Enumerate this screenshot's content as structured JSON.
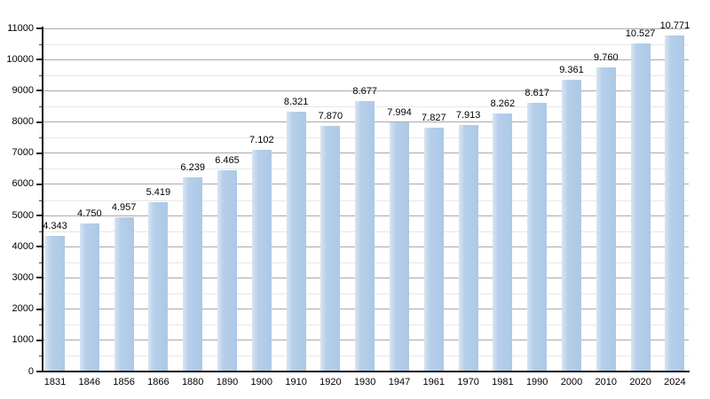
{
  "chart_data": {
    "type": "bar",
    "title": "",
    "xlabel": "",
    "ylabel": "",
    "categories": [
      "1831",
      "1846",
      "1856",
      "1866",
      "1880",
      "1890",
      "1900",
      "1910",
      "1920",
      "1930",
      "1947",
      "1961",
      "1970",
      "1981",
      "1990",
      "2000",
      "2010",
      "2020",
      "2024"
    ],
    "values": [
      4343,
      4750,
      4957,
      5419,
      6239,
      6465,
      7102,
      8321,
      7870,
      8677,
      7994,
      7827,
      7913,
      8262,
      8617,
      9361,
      9760,
      10527,
      10771
    ],
    "value_labels": [
      "4.343",
      "4.750",
      "4.957",
      "5.419",
      "6.239",
      "6.465",
      "7.102",
      "8.321",
      "7.870",
      "8.677",
      "7.994",
      "7.827",
      "7.913",
      "8.262",
      "8.617",
      "9.361",
      "9.760",
      "10.527",
      "10.771"
    ],
    "ylim": [
      0,
      11000
    ],
    "y_major_step": 1000,
    "y_minor_step": 500,
    "y_tick_labels": [
      "0",
      "1000",
      "2000",
      "3000",
      "4000",
      "5000",
      "6000",
      "7000",
      "8000",
      "9000",
      "10000",
      "11000"
    ],
    "grid": "major and minor horizontal gridlines, shown only in plot background",
    "legend": "none",
    "colors": {
      "bar_fill": "#abc9e6",
      "bar_highlight": "#d9e5f2",
      "gridline_major": "#aaaaaa",
      "gridline_minor": "#e7e7e7",
      "axis": "#111111",
      "text": "#000000",
      "background": "#ffffff"
    }
  }
}
